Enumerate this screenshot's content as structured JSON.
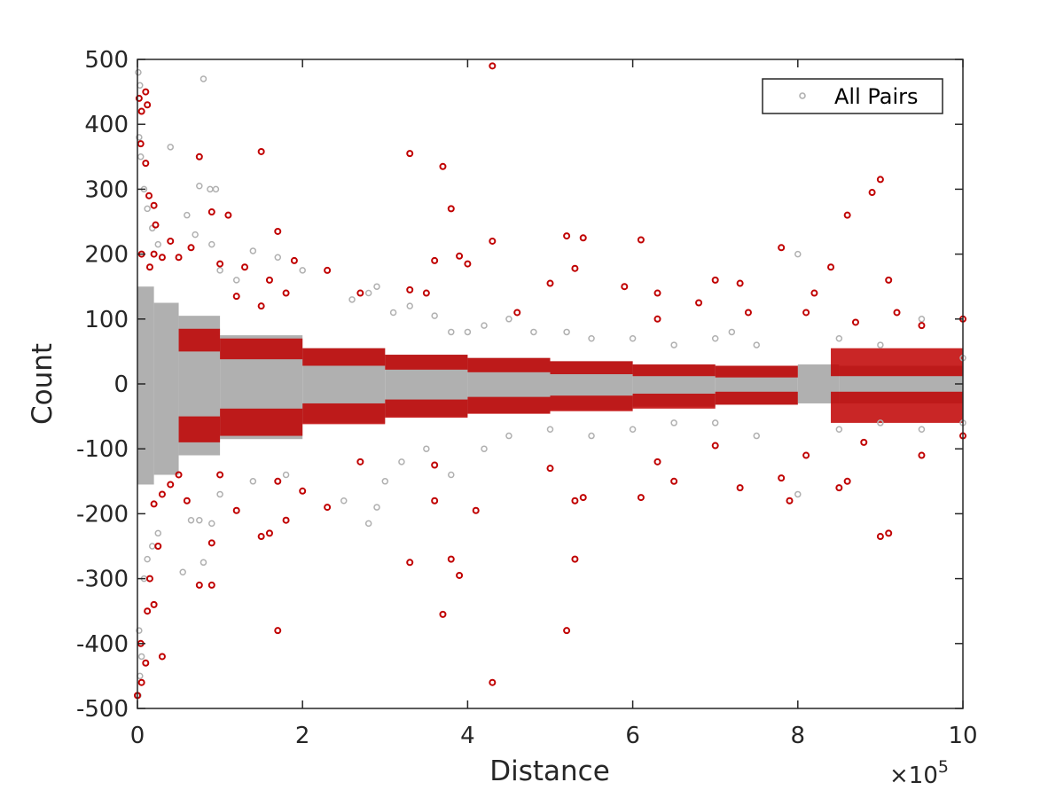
{
  "chart_data": {
    "type": "scatter",
    "xlabel": "Distance",
    "ylabel": "Count",
    "x_exponent_base": "×10",
    "x_exponent_power": "5",
    "xlim": [
      0,
      1000000
    ],
    "ylim": [
      -500,
      500
    ],
    "x_ticks": [
      0,
      200000,
      400000,
      600000,
      800000,
      1000000
    ],
    "x_tick_labels": [
      "0",
      "2",
      "4",
      "6",
      "8",
      "10"
    ],
    "y_ticks": [
      500,
      400,
      300,
      200,
      100,
      0,
      -100,
      -200,
      -300,
      -400,
      -500
    ],
    "y_tick_labels": [
      "500",
      "400",
      "300",
      "200",
      "100",
      "0",
      "-100",
      "-200",
      "-300",
      "-400",
      "-500"
    ],
    "grid": false,
    "legend": {
      "placement": "top-right",
      "entries": [
        {
          "label": "All Pairs",
          "color": "#b0b0b0",
          "marker": "circle-open"
        }
      ]
    },
    "series": [
      {
        "name": "All Pairs",
        "color": "#b0b0b0",
        "points": [
          [
            1000,
            480
          ],
          [
            3000,
            460
          ],
          [
            5000,
            420
          ],
          [
            2000,
            380
          ],
          [
            4000,
            350
          ],
          [
            8000,
            300
          ],
          [
            12000,
            270
          ],
          [
            18000,
            240
          ],
          [
            25000,
            215
          ],
          [
            40000,
            365
          ],
          [
            80000,
            470
          ],
          [
            75000,
            305
          ],
          [
            88000,
            300
          ],
          [
            95000,
            300
          ],
          [
            60000,
            260
          ],
          [
            70000,
            230
          ],
          [
            90000,
            215
          ],
          [
            100000,
            175
          ],
          [
            120000,
            160
          ],
          [
            140000,
            205
          ],
          [
            170000,
            195
          ],
          [
            200000,
            175
          ],
          [
            260000,
            130
          ],
          [
            280000,
            140
          ],
          [
            290000,
            150
          ],
          [
            310000,
            110
          ],
          [
            330000,
            120
          ],
          [
            360000,
            105
          ],
          [
            380000,
            80
          ],
          [
            400000,
            80
          ],
          [
            420000,
            90
          ],
          [
            450000,
            100
          ],
          [
            480000,
            80
          ],
          [
            520000,
            80
          ],
          [
            550000,
            70
          ],
          [
            600000,
            70
          ],
          [
            650000,
            60
          ],
          [
            700000,
            70
          ],
          [
            720000,
            80
          ],
          [
            750000,
            60
          ],
          [
            800000,
            200
          ],
          [
            850000,
            70
          ],
          [
            900000,
            60
          ],
          [
            950000,
            100
          ],
          [
            1000000,
            40
          ],
          [
            1000,
            -480
          ],
          [
            3000,
            -450
          ],
          [
            5000,
            -420
          ],
          [
            2000,
            -380
          ],
          [
            8000,
            -300
          ],
          [
            12000,
            -270
          ],
          [
            18000,
            -250
          ],
          [
            25000,
            -230
          ],
          [
            55000,
            -290
          ],
          [
            65000,
            -210
          ],
          [
            75000,
            -210
          ],
          [
            80000,
            -275
          ],
          [
            90000,
            -215
          ],
          [
            100000,
            -170
          ],
          [
            140000,
            -150
          ],
          [
            180000,
            -140
          ],
          [
            250000,
            -180
          ],
          [
            280000,
            -215
          ],
          [
            290000,
            -190
          ],
          [
            300000,
            -150
          ],
          [
            320000,
            -120
          ],
          [
            350000,
            -100
          ],
          [
            380000,
            -140
          ],
          [
            420000,
            -100
          ],
          [
            450000,
            -80
          ],
          [
            500000,
            -70
          ],
          [
            550000,
            -80
          ],
          [
            600000,
            -70
          ],
          [
            650000,
            -60
          ],
          [
            700000,
            -60
          ],
          [
            750000,
            -80
          ],
          [
            800000,
            -170
          ],
          [
            850000,
            -70
          ],
          [
            900000,
            -60
          ],
          [
            950000,
            -70
          ],
          [
            1000000,
            -60
          ]
        ]
      },
      {
        "name": "",
        "color": "#c00000",
        "points": [
          [
            2000,
            440
          ],
          [
            5000,
            420
          ],
          [
            10000,
            450
          ],
          [
            12000,
            430
          ],
          [
            4000,
            370
          ],
          [
            10000,
            340
          ],
          [
            14000,
            290
          ],
          [
            20000,
            275
          ],
          [
            22000,
            245
          ],
          [
            75000,
            350
          ],
          [
            150000,
            358
          ],
          [
            330000,
            355
          ],
          [
            370000,
            335
          ],
          [
            380000,
            270
          ],
          [
            430000,
            490
          ],
          [
            900000,
            315
          ],
          [
            890000,
            295
          ],
          [
            860000,
            260
          ],
          [
            90000,
            265
          ],
          [
            110000,
            260
          ],
          [
            170000,
            235
          ],
          [
            520000,
            228
          ],
          [
            540000,
            225
          ],
          [
            610000,
            222
          ],
          [
            430000,
            220
          ],
          [
            40000,
            220
          ],
          [
            65000,
            210
          ],
          [
            5000,
            200
          ],
          [
            15000,
            180
          ],
          [
            20000,
            200
          ],
          [
            30000,
            195
          ],
          [
            50000,
            195
          ],
          [
            100000,
            185
          ],
          [
            130000,
            180
          ],
          [
            160000,
            160
          ],
          [
            190000,
            190
          ],
          [
            230000,
            175
          ],
          [
            360000,
            190
          ],
          [
            390000,
            197
          ],
          [
            400000,
            185
          ],
          [
            530000,
            178
          ],
          [
            700000,
            160
          ],
          [
            780000,
            210
          ],
          [
            840000,
            180
          ],
          [
            910000,
            160
          ],
          [
            730000,
            155
          ],
          [
            500000,
            155
          ],
          [
            590000,
            150
          ],
          [
            630000,
            140
          ],
          [
            820000,
            140
          ],
          [
            920000,
            110
          ],
          [
            1000000,
            100
          ],
          [
            120000,
            135
          ],
          [
            150000,
            120
          ],
          [
            180000,
            140
          ],
          [
            270000,
            140
          ],
          [
            330000,
            145
          ],
          [
            350000,
            140
          ],
          [
            460000,
            110
          ],
          [
            630000,
            100
          ],
          [
            680000,
            125
          ],
          [
            740000,
            110
          ],
          [
            810000,
            110
          ],
          [
            870000,
            95
          ],
          [
            950000,
            90
          ],
          [
            0,
            -480
          ],
          [
            5000,
            -460
          ],
          [
            10000,
            -430
          ],
          [
            4000,
            -400
          ],
          [
            12000,
            -350
          ],
          [
            20000,
            -340
          ],
          [
            30000,
            -420
          ],
          [
            15000,
            -300
          ],
          [
            25000,
            -250
          ],
          [
            75000,
            -310
          ],
          [
            90000,
            -310
          ],
          [
            170000,
            -380
          ],
          [
            330000,
            -275
          ],
          [
            370000,
            -355
          ],
          [
            380000,
            -270
          ],
          [
            390000,
            -295
          ],
          [
            430000,
            -460
          ],
          [
            520000,
            -380
          ],
          [
            530000,
            -270
          ],
          [
            900000,
            -235
          ],
          [
            910000,
            -230
          ],
          [
            90000,
            -245
          ],
          [
            150000,
            -235
          ],
          [
            160000,
            -230
          ],
          [
            180000,
            -210
          ],
          [
            230000,
            -190
          ],
          [
            120000,
            -195
          ],
          [
            60000,
            -180
          ],
          [
            20000,
            -185
          ],
          [
            30000,
            -170
          ],
          [
            40000,
            -155
          ],
          [
            50000,
            -140
          ],
          [
            100000,
            -140
          ],
          [
            170000,
            -150
          ],
          [
            200000,
            -165
          ],
          [
            360000,
            -180
          ],
          [
            410000,
            -195
          ],
          [
            530000,
            -180
          ],
          [
            540000,
            -175
          ],
          [
            610000,
            -175
          ],
          [
            730000,
            -160
          ],
          [
            780000,
            -145
          ],
          [
            790000,
            -180
          ],
          [
            850000,
            -160
          ],
          [
            860000,
            -150
          ],
          [
            270000,
            -120
          ],
          [
            360000,
            -125
          ],
          [
            500000,
            -130
          ],
          [
            630000,
            -120
          ],
          [
            650000,
            -150
          ],
          [
            700000,
            -95
          ],
          [
            810000,
            -110
          ],
          [
            880000,
            -90
          ],
          [
            950000,
            -110
          ],
          [
            1000000,
            -80
          ]
        ]
      }
    ],
    "bands": {
      "gray_segments": [
        [
          0,
          20000,
          150,
          -155
        ],
        [
          20000,
          50000,
          125,
          -140
        ],
        [
          50000,
          100000,
          105,
          -110
        ],
        [
          100000,
          200000,
          75,
          -85
        ],
        [
          200000,
          300000,
          55,
          -60
        ],
        [
          300000,
          400000,
          45,
          -50
        ],
        [
          400000,
          500000,
          40,
          -45
        ],
        [
          500000,
          600000,
          35,
          -40
        ],
        [
          600000,
          700000,
          30,
          -35
        ],
        [
          700000,
          800000,
          28,
          -32
        ],
        [
          800000,
          850000,
          30,
          -30
        ],
        [
          850000,
          1000000,
          28,
          -30
        ]
      ],
      "red_segments": [
        [
          50000,
          100000,
          85,
          50,
          -50,
          -90
        ],
        [
          100000,
          200000,
          70,
          38,
          -38,
          -80
        ],
        [
          200000,
          300000,
          55,
          28,
          -30,
          -62
        ],
        [
          300000,
          400000,
          45,
          22,
          -24,
          -52
        ],
        [
          400000,
          500000,
          40,
          18,
          -20,
          -46
        ],
        [
          500000,
          600000,
          35,
          15,
          -18,
          -42
        ],
        [
          600000,
          700000,
          30,
          12,
          -15,
          -38
        ],
        [
          700000,
          800000,
          28,
          10,
          -12,
          -32
        ],
        [
          840000,
          1000000,
          55,
          12,
          -12,
          -60
        ]
      ]
    }
  }
}
